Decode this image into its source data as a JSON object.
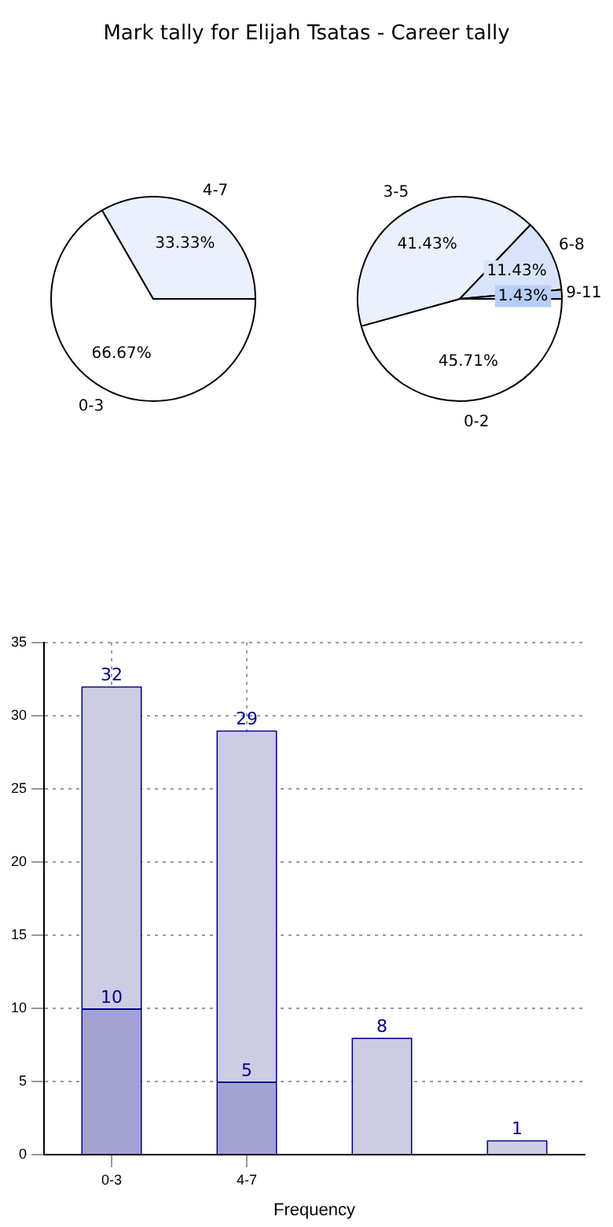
{
  "chart_data": [
    {
      "type": "pie",
      "title": "Mark tally for Elijah Tsatas - Career tally",
      "categories": [
        "0-3",
        "4-7"
      ],
      "values": [
        66.67,
        33.33
      ],
      "value_labels": [
        "66.67%",
        "33.33%"
      ],
      "colors": [
        "#ffffff",
        "#eaf0fc"
      ]
    },
    {
      "type": "pie",
      "categories": [
        "0-2",
        "3-5",
        "6-8",
        "9-11"
      ],
      "values": [
        45.71,
        41.43,
        11.43,
        1.43
      ],
      "value_labels": [
        "45.71%",
        "41.43%",
        "11.43%",
        "1.43%"
      ],
      "colors": [
        "#ffffff",
        "#eaf0fc",
        "#d8e4fa",
        "#b8cff5"
      ]
    },
    {
      "type": "bar",
      "xlabel": "Frequency",
      "categories": [
        "0-3",
        "4-7",
        null,
        null
      ],
      "stacked": true,
      "series": [
        {
          "color": "#a3a3d1",
          "values": [
            10,
            5,
            null,
            null
          ],
          "value_labels": [
            "10",
            "5",
            null,
            null
          ]
        },
        {
          "color": "#cccce4",
          "values": [
            22,
            24,
            8,
            1
          ]
        }
      ],
      "totals": [
        "32",
        "29",
        "8",
        "1"
      ],
      "ylim": [
        0,
        35
      ],
      "yticks": [
        0,
        5,
        10,
        15,
        20,
        25,
        30,
        35
      ],
      "grid": true
    }
  ]
}
